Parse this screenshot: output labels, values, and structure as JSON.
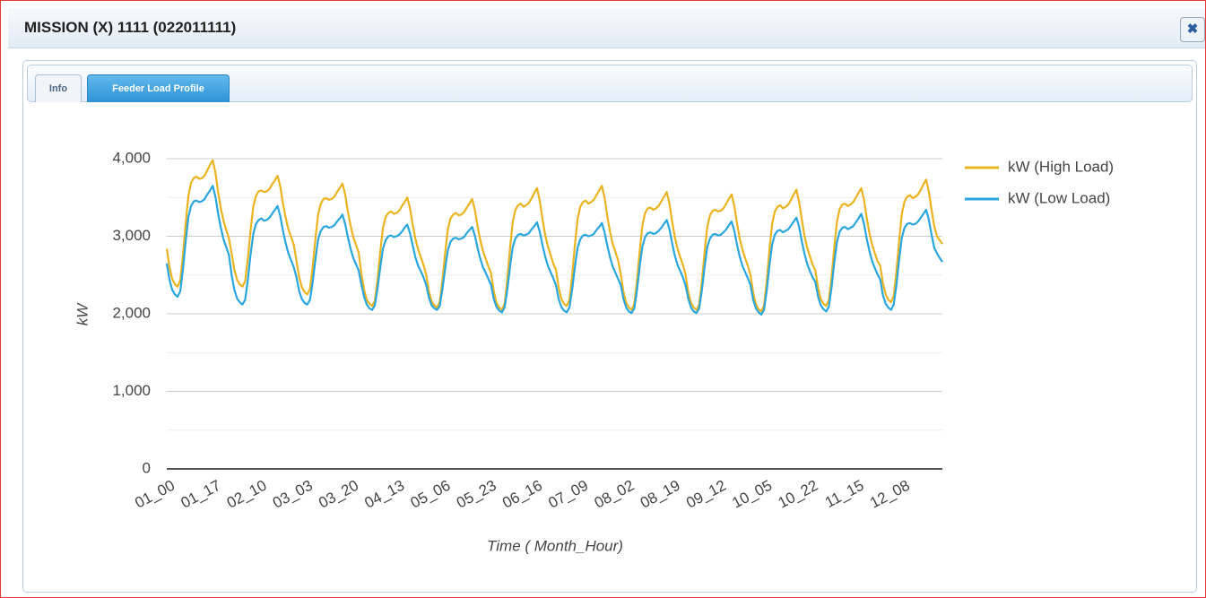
{
  "window": {
    "title": "MISSION (X) 1111 (022011111)",
    "close": "✖"
  },
  "tabs": [
    "Info",
    "Feeder Load Profile"
  ],
  "chart_data": {
    "type": "line",
    "y_label": "kW",
    "x_label": "Time ( Month_Hour)",
    "categories": [
      "01_00",
      null,
      null,
      null,
      null,
      null,
      null,
      null,
      null,
      null,
      null,
      null,
      null,
      null,
      null,
      null,
      null,
      "01_17",
      null,
      null,
      null,
      null,
      null,
      null,
      null,
      null,
      null,
      null,
      null,
      null,
      null,
      null,
      null,
      null,
      "02_10",
      null,
      null,
      null,
      null,
      null,
      null,
      null,
      null,
      null,
      null,
      null,
      null,
      null,
      null,
      null,
      null,
      "03_03",
      null,
      null,
      null,
      null,
      null,
      null,
      null,
      null,
      null,
      null,
      null,
      null,
      null,
      null,
      null,
      null,
      "03_20",
      null,
      null,
      null,
      null,
      null,
      null,
      null,
      null,
      null,
      null,
      null,
      null,
      null,
      null,
      null,
      null,
      "04_13",
      null,
      null,
      null,
      null,
      null,
      null,
      null,
      null,
      null,
      null,
      null,
      null,
      null,
      null,
      null,
      null,
      "05_06",
      null,
      null,
      null,
      null,
      null,
      null,
      null,
      null,
      null,
      null,
      null,
      null,
      null,
      null,
      null,
      null,
      "05_23",
      null,
      null,
      null,
      null,
      null,
      null,
      null,
      null,
      null,
      null,
      null,
      null,
      null,
      null,
      null,
      null,
      "06_16",
      null,
      null,
      null,
      null,
      null,
      null,
      null,
      null,
      null,
      null,
      null,
      null,
      null,
      null,
      null,
      null,
      "07_09",
      null,
      null,
      null,
      null,
      null,
      null,
      null,
      null,
      null,
      null,
      null,
      null,
      null,
      null,
      null,
      null,
      "08_02",
      null,
      null,
      null,
      null,
      null,
      null,
      null,
      null,
      null,
      null,
      null,
      null,
      null,
      null,
      null,
      null,
      "08_19",
      null,
      null,
      null,
      null,
      null,
      null,
      null,
      null,
      null,
      null,
      null,
      null,
      null,
      null,
      null,
      null,
      "09_12",
      null,
      null,
      null,
      null,
      null,
      null,
      null,
      null,
      null,
      null,
      null,
      null,
      null,
      null,
      null,
      null,
      "10_05",
      null,
      null,
      null,
      null,
      null,
      null,
      null,
      null,
      null,
      null,
      null,
      null,
      null,
      null,
      null,
      null,
      "10_22",
      null,
      null,
      null,
      null,
      null,
      null,
      null,
      null,
      null,
      null,
      null,
      null,
      null,
      null,
      null,
      null,
      "11_15",
      null,
      null,
      null,
      null,
      null,
      null,
      null,
      null,
      null,
      null,
      null,
      null,
      null,
      null,
      null,
      null,
      "12_08",
      null,
      null,
      null,
      null,
      null,
      null,
      null,
      null,
      null,
      null,
      null,
      null,
      null,
      null,
      null
    ],
    "series": [
      {
        "name": "kW (High Load)",
        "color": "#eab320",
        "values": [
          2840,
          2600,
          2450,
          2380,
          2350,
          2430,
          2760,
          3170,
          3520,
          3690,
          3750,
          3770,
          3740,
          3750,
          3780,
          3850,
          3920,
          3980,
          3820,
          3570,
          3360,
          3200,
          3080,
          2970,
          2780,
          2570,
          2440,
          2380,
          2350,
          2420,
          2710,
          3070,
          3380,
          3520,
          3580,
          3590,
          3570,
          3580,
          3610,
          3670,
          3720,
          3780,
          3640,
          3420,
          3240,
          3090,
          2990,
          2890,
          2680,
          2470,
          2340,
          2280,
          2250,
          2320,
          2610,
          2970,
          3280,
          3420,
          3480,
          3490,
          3470,
          3480,
          3510,
          3570,
          3620,
          3680,
          3540,
          3320,
          3140,
          2990,
          2890,
          2790,
          2520,
          2310,
          2180,
          2130,
          2100,
          2170,
          2450,
          2800,
          3110,
          3250,
          3300,
          3320,
          3290,
          3300,
          3330,
          3390,
          3440,
          3500,
          3360,
          3150,
          2970,
          2830,
          2730,
          2630,
          2500,
          2290,
          2160,
          2110,
          2080,
          2150,
          2430,
          2780,
          3090,
          3230,
          3280,
          3300,
          3270,
          3280,
          3310,
          3370,
          3420,
          3480,
          3340,
          3130,
          2950,
          2810,
          2710,
          2610,
          2520,
          2290,
          2140,
          2080,
          2050,
          2130,
          2440,
          2840,
          3180,
          3340,
          3400,
          3420,
          3380,
          3400,
          3430,
          3490,
          3560,
          3620,
          3460,
          3230,
          3020,
          2870,
          2760,
          2650,
          2570,
          2340,
          2190,
          2130,
          2100,
          2180,
          2490,
          2880,
          3220,
          3380,
          3440,
          3460,
          3420,
          3440,
          3470,
          3530,
          3590,
          3650,
          3500,
          3260,
          3060,
          2900,
          2800,
          2690,
          2510,
          2280,
          2140,
          2080,
          2050,
          2130,
          2430,
          2810,
          3140,
          3300,
          3360,
          3370,
          3340,
          3360,
          3390,
          3450,
          3510,
          3570,
          3420,
          3190,
          2990,
          2840,
          2730,
          2630,
          2500,
          2270,
          2140,
          2080,
          2050,
          2120,
          2420,
          2790,
          3120,
          3270,
          3330,
          3340,
          3320,
          3330,
          3360,
          3420,
          3480,
          3540,
          3390,
          3170,
          2970,
          2830,
          2720,
          2620,
          2500,
          2270,
          2120,
          2060,
          2030,
          2110,
          2420,
          2820,
          3160,
          3320,
          3380,
          3400,
          3360,
          3380,
          3410,
          3470,
          3540,
          3600,
          3440,
          3210,
          3000,
          2850,
          2740,
          2630,
          2560,
          2330,
          2190,
          2130,
          2100,
          2180,
          2480,
          2860,
          3190,
          3350,
          3410,
          3420,
          3390,
          3410,
          3440,
          3500,
          3560,
          3620,
          3470,
          3240,
          3040,
          2890,
          2780,
          2680,
          2620,
          2390,
          2250,
          2180,
          2150,
          2230,
          2550,
          2940,
          3290,
          3450,
          3510,
          3530,
          3490,
          3510,
          3540,
          3600,
          3670,
          3730,
          3570,
          3340,
          3130,
          3000,
          2950,
          2900
        ]
      },
      {
        "name": "kW (Low Load)",
        "color": "#2aa6df",
        "values": [
          2650,
          2440,
          2310,
          2250,
          2220,
          2290,
          2580,
          2940,
          3250,
          3390,
          3450,
          3460,
          3440,
          3450,
          3480,
          3540,
          3590,
          3650,
          3510,
          3290,
          3110,
          2960,
          2860,
          2760,
          2500,
          2310,
          2200,
          2150,
          2120,
          2180,
          2440,
          2760,
          3030,
          3160,
          3210,
          3230,
          3200,
          3210,
          3240,
          3290,
          3340,
          3390,
          3260,
          3070,
          2910,
          2780,
          2690,
          2600,
          2470,
          2290,
          2190,
          2140,
          2120,
          2180,
          2410,
          2700,
          2960,
          3070,
          3120,
          3130,
          3110,
          3120,
          3140,
          3190,
          3230,
          3280,
          3160,
          2990,
          2840,
          2720,
          2640,
          2560,
          2380,
          2220,
          2120,
          2070,
          2050,
          2110,
          2330,
          2600,
          2840,
          2950,
          3000,
          3010,
          2990,
          3000,
          3020,
          3060,
          3110,
          3150,
          3040,
          2880,
          2730,
          2620,
          2550,
          2470,
          2370,
          2210,
          2110,
          2070,
          2050,
          2100,
          2320,
          2580,
          2820,
          2930,
          2970,
          2980,
          2960,
          2970,
          2990,
          3040,
          3080,
          3120,
          3010,
          2850,
          2710,
          2600,
          2530,
          2450,
          2370,
          2190,
          2090,
          2040,
          2020,
          2080,
          2310,
          2600,
          2860,
          2970,
          3020,
          3030,
          3010,
          3020,
          3040,
          3090,
          3130,
          3180,
          3060,
          2890,
          2740,
          2620,
          2540,
          2460,
          2370,
          2190,
          2090,
          2040,
          2020,
          2080,
          2310,
          2600,
          2850,
          2960,
          3010,
          3020,
          3000,
          3010,
          3030,
          3080,
          3120,
          3170,
          3050,
          2880,
          2730,
          2610,
          2530,
          2450,
          2370,
          2190,
          2080,
          2030,
          2010,
          2070,
          2310,
          2610,
          2870,
          2990,
          3040,
          3050,
          3030,
          3040,
          3070,
          3110,
          3160,
          3210,
          3090,
          2910,
          2750,
          2630,
          2550,
          2470,
          2360,
          2190,
          2080,
          2030,
          2010,
          2070,
          2300,
          2600,
          2860,
          2970,
          3020,
          3030,
          3010,
          3020,
          3050,
          3090,
          3140,
          3190,
          3070,
          2890,
          2740,
          2620,
          2540,
          2460,
          2370,
          2180,
          2070,
          2020,
          1990,
          2050,
          2300,
          2620,
          2890,
          3020,
          3070,
          3080,
          3050,
          3070,
          3090,
          3140,
          3190,
          3240,
          3120,
          2930,
          2770,
          2640,
          2550,
          2470,
          2410,
          2220,
          2110,
          2060,
          2030,
          2090,
          2340,
          2660,
          2930,
          3060,
          3110,
          3120,
          3090,
          3110,
          3130,
          3180,
          3230,
          3290,
          3160,
          2970,
          2810,
          2680,
          2590,
          2510,
          2440,
          2240,
          2130,
          2080,
          2050,
          2120,
          2370,
          2700,
          2980,
          3110,
          3160,
          3170,
          3150,
          3160,
          3190,
          3240,
          3290,
          3340,
          3210,
          3020,
          2850,
          2780,
          2720,
          2670
        ]
      }
    ],
    "ylim": [
      0,
      4000
    ],
    "yticks": [
      0,
      {
        "value": 1000,
        "label": "1,000"
      },
      {
        "value": 2000,
        "label": "2,000"
      },
      {
        "value": 3000,
        "label": "3,000"
      },
      {
        "value": 4000,
        "label": "4,000"
      }
    ],
    "minor_yticks": [
      500,
      1500,
      2500,
      3500
    ],
    "grid": true,
    "legend": "right"
  }
}
